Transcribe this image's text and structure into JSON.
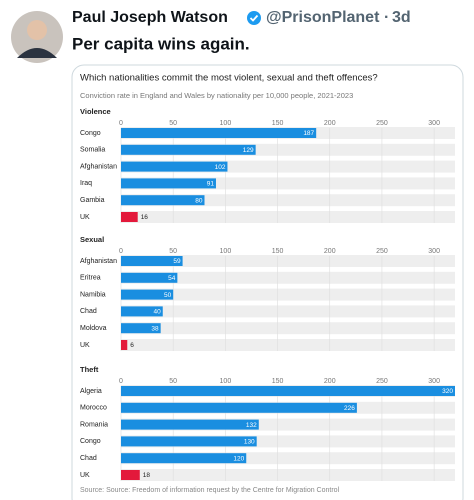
{
  "tweet": {
    "name": "Paul Joseph Watson",
    "handle": "@PrisonPlanet",
    "time": "3d",
    "text": "Per capita wins again."
  },
  "figure": {
    "title": "Which nationalities commit the most violent, sexual and theft offences?",
    "subtitle": "Conviction rate in England and Wales by nationality per 10,000 people, 2021-2023",
    "source": "Source: Source: Freedom of information request by the Centre for Migration Control"
  },
  "chart_data": [
    {
      "type": "bar",
      "orientation": "horizontal",
      "title": "Violence",
      "categories": [
        "Congo",
        "Somalia",
        "Afghanistan",
        "Iraq",
        "Gambia",
        "UK"
      ],
      "values": [
        187,
        129,
        102,
        91,
        80,
        16
      ],
      "colors": [
        "#1a8ee0",
        "#1a8ee0",
        "#1a8ee0",
        "#1a8ee0",
        "#1a8ee0",
        "#e3193b"
      ],
      "xlim": [
        0,
        320
      ],
      "xticks": [
        0,
        50,
        100,
        150,
        200,
        250,
        300
      ]
    },
    {
      "type": "bar",
      "orientation": "horizontal",
      "title": "Sexual",
      "categories": [
        "Afghanistan",
        "Eritrea",
        "Namibia",
        "Chad",
        "Moldova",
        "UK"
      ],
      "values": [
        59,
        54,
        50,
        40,
        38,
        6
      ],
      "colors": [
        "#1a8ee0",
        "#1a8ee0",
        "#1a8ee0",
        "#1a8ee0",
        "#1a8ee0",
        "#e3193b"
      ],
      "xlim": [
        0,
        320
      ],
      "xticks": [
        0,
        50,
        100,
        150,
        200,
        250,
        300
      ]
    },
    {
      "type": "bar",
      "orientation": "horizontal",
      "title": "Theft",
      "categories": [
        "Algeria",
        "Morocco",
        "Romania",
        "Congo",
        "Chad",
        "UK"
      ],
      "values": [
        320,
        226,
        132,
        130,
        120,
        18
      ],
      "colors": [
        "#1a8ee0",
        "#1a8ee0",
        "#1a8ee0",
        "#1a8ee0",
        "#1a8ee0",
        "#e3193b"
      ],
      "xlim": [
        0,
        320
      ],
      "xticks": [
        0,
        50,
        100,
        150,
        200,
        250,
        300
      ]
    }
  ]
}
